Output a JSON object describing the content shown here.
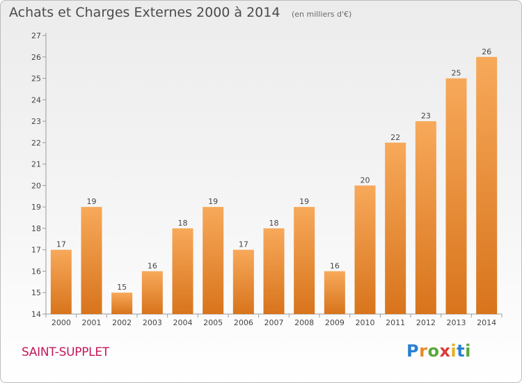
{
  "page": {
    "title": "Achats et Charges Externes 2000 à 2014",
    "unit": "(en milliers d'€)",
    "commune": "SAINT-SUPPLET",
    "logo": "Proxiti"
  },
  "chart_data": {
    "type": "bar",
    "title": "Achats et Charges Externes 2000 à 2014",
    "subtitle": "(en milliers d'€)",
    "xlabel": "",
    "ylabel": "",
    "categories": [
      "2000",
      "2001",
      "2002",
      "2003",
      "2004",
      "2005",
      "2006",
      "2007",
      "2008",
      "2009",
      "2010",
      "2011",
      "2012",
      "2013",
      "2014"
    ],
    "values": [
      17,
      19,
      15,
      16,
      18,
      19,
      17,
      18,
      19,
      16,
      20,
      22,
      23,
      25,
      26
    ],
    "ylim": [
      14,
      27
    ],
    "yticks": [
      14,
      15,
      16,
      17,
      18,
      19,
      20,
      21,
      22,
      23,
      24,
      25,
      26,
      27
    ],
    "grid": false,
    "legend": "none",
    "colors": {
      "bar_light": "#f7a95a",
      "bar_dark": "#d8741c",
      "axis": "#999999"
    }
  }
}
